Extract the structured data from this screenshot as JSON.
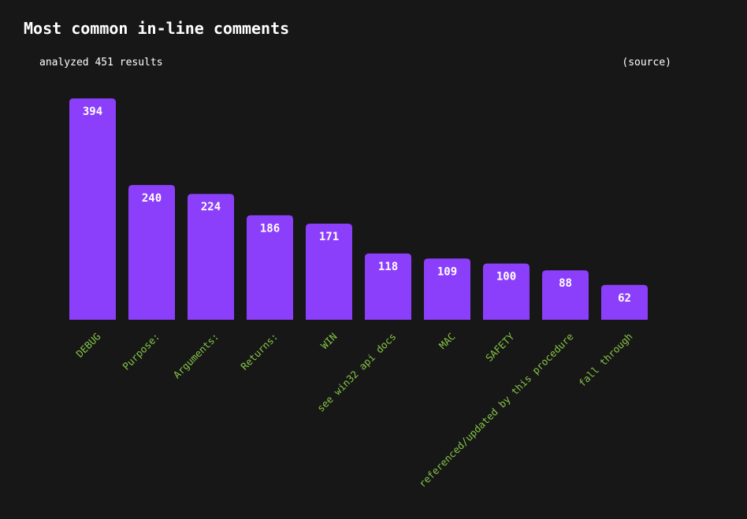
{
  "page": {
    "title": "Most common in-line comments",
    "subtitle": "analyzed 451 results",
    "source_label": "(source)"
  },
  "colors": {
    "background": "#171717",
    "bar": "#8c3ffb",
    "value_label": "#ffffff",
    "category_label": "#84c546"
  },
  "chart_data": {
    "type": "bar",
    "title": "Most common in-line comments",
    "xlabel": "",
    "ylabel": "",
    "ylim": [
      0,
      394
    ],
    "grid": false,
    "categories": [
      "DEBUG",
      "Purpose:",
      "Arguments:",
      "Returns:",
      "WIN",
      "see win32 api docs",
      "MAC",
      "SAFETY",
      "referenced/updated by this procedure",
      "fall through"
    ],
    "values": [
      394,
      240,
      224,
      186,
      171,
      118,
      109,
      100,
      88,
      62
    ]
  }
}
